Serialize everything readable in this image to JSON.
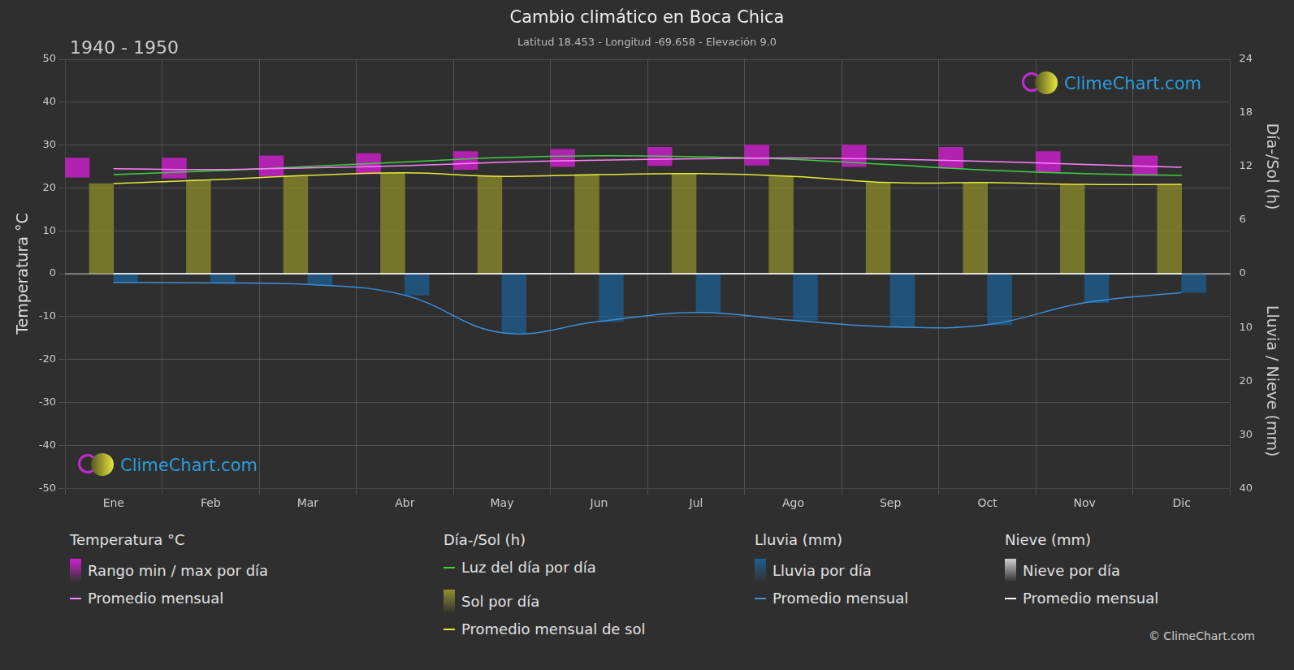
{
  "chart_data": {
    "type": "climate",
    "title": "Cambio climático en Boca Chica",
    "subtitle": "Latitud 18.453 - Longitud -69.658 - Elevación 9.0",
    "period": "1940 - 1950",
    "watermark": "ClimeChart.com",
    "copyright": "© ClimeChart.com",
    "y_label": "Temperatura °C",
    "y2_label": "Día-/Sol (h)",
    "y3_label": "Lluvia / Nieve (mm)",
    "categories": [
      "Ene",
      "Feb",
      "Mar",
      "Abr",
      "May",
      "Jun",
      "Jul",
      "Ago",
      "Sep",
      "Oct",
      "Nov",
      "Dic"
    ],
    "ylim": [
      -50,
      50
    ],
    "yticks": [
      -50,
      -40,
      -30,
      -20,
      -10,
      0,
      10,
      20,
      30,
      40,
      50
    ],
    "y2lim": [
      0,
      24
    ],
    "y2ticks": [
      0,
      6,
      12,
      18,
      24
    ],
    "y3lim": [
      0,
      40
    ],
    "y3ticks": [
      10,
      20,
      30,
      40
    ],
    "grid": true,
    "series": [
      {
        "name": "Rango min / max por día",
        "group": "Temperatura °C",
        "type": "range",
        "axis": "y",
        "color": "#d21fd2",
        "low": [
          22.5,
          22.3,
          22.7,
          23.3,
          24.3,
          25.0,
          25.2,
          25.3,
          25.0,
          24.6,
          23.8,
          22.9
        ],
        "high": [
          27.0,
          27.0,
          27.5,
          28.0,
          28.5,
          29.0,
          29.5,
          30.0,
          30.0,
          29.5,
          28.5,
          27.5
        ]
      },
      {
        "name": "Promedio mensual",
        "group": "Temperatura °C",
        "type": "line",
        "axis": "y",
        "color": "#ff80ff",
        "values": [
          24.5,
          24.3,
          24.7,
          25.2,
          26.0,
          26.5,
          26.8,
          27.0,
          26.7,
          26.2,
          25.5,
          24.8
        ]
      },
      {
        "name": "Luz del día por día",
        "group": "Día-/Sol (h)",
        "type": "line",
        "axis": "y2",
        "color": "#3fcf3f",
        "values": [
          11.1,
          11.5,
          12.0,
          12.5,
          13.0,
          13.2,
          13.1,
          12.8,
          12.2,
          11.6,
          11.2,
          11.0
        ]
      },
      {
        "name": "Sol por día",
        "group": "Día-/Sol (h)",
        "type": "bar",
        "axis": "y2",
        "color": "#8f8f2c",
        "values": [
          10.1,
          10.5,
          11.0,
          11.3,
          10.9,
          11.1,
          11.2,
          10.9,
          10.2,
          10.2,
          10.0,
          10.0
        ]
      },
      {
        "name": "Promedio mensual de sol",
        "group": "Día-/Sol (h)",
        "type": "line",
        "axis": "y2",
        "color": "#e8e83c",
        "values": [
          10.1,
          10.5,
          11.0,
          11.3,
          10.9,
          11.1,
          11.2,
          10.9,
          10.2,
          10.2,
          10.0,
          10.0
        ]
      },
      {
        "name": "Lluvia por día",
        "group": "Lluvia (mm)",
        "type": "bar",
        "axis": "y3",
        "color": "#1c5f94",
        "values": [
          1.6,
          1.7,
          2.0,
          4.0,
          11.0,
          8.9,
          7.2,
          8.7,
          9.9,
          9.5,
          5.4,
          3.5
        ]
      },
      {
        "name": "Promedio mensual",
        "group": "Lluvia (mm)",
        "type": "line",
        "axis": "y3",
        "color": "#3a8fd8",
        "values": [
          1.6,
          1.7,
          2.0,
          4.0,
          11.0,
          8.9,
          7.2,
          8.7,
          9.9,
          9.5,
          5.4,
          3.5
        ]
      },
      {
        "name": "Nieve por día",
        "group": "Nieve (mm)",
        "type": "bar",
        "axis": "y3",
        "color": "#d0d0d0",
        "values": [
          0,
          0,
          0,
          0,
          0,
          0,
          0,
          0,
          0,
          0,
          0,
          0
        ]
      },
      {
        "name": "Promedio mensual",
        "group": "Nieve (mm)",
        "type": "line",
        "axis": "y3",
        "color": "#ffffff",
        "values": [
          0,
          0,
          0,
          0,
          0,
          0,
          0,
          0,
          0,
          0,
          0,
          0
        ]
      }
    ]
  }
}
